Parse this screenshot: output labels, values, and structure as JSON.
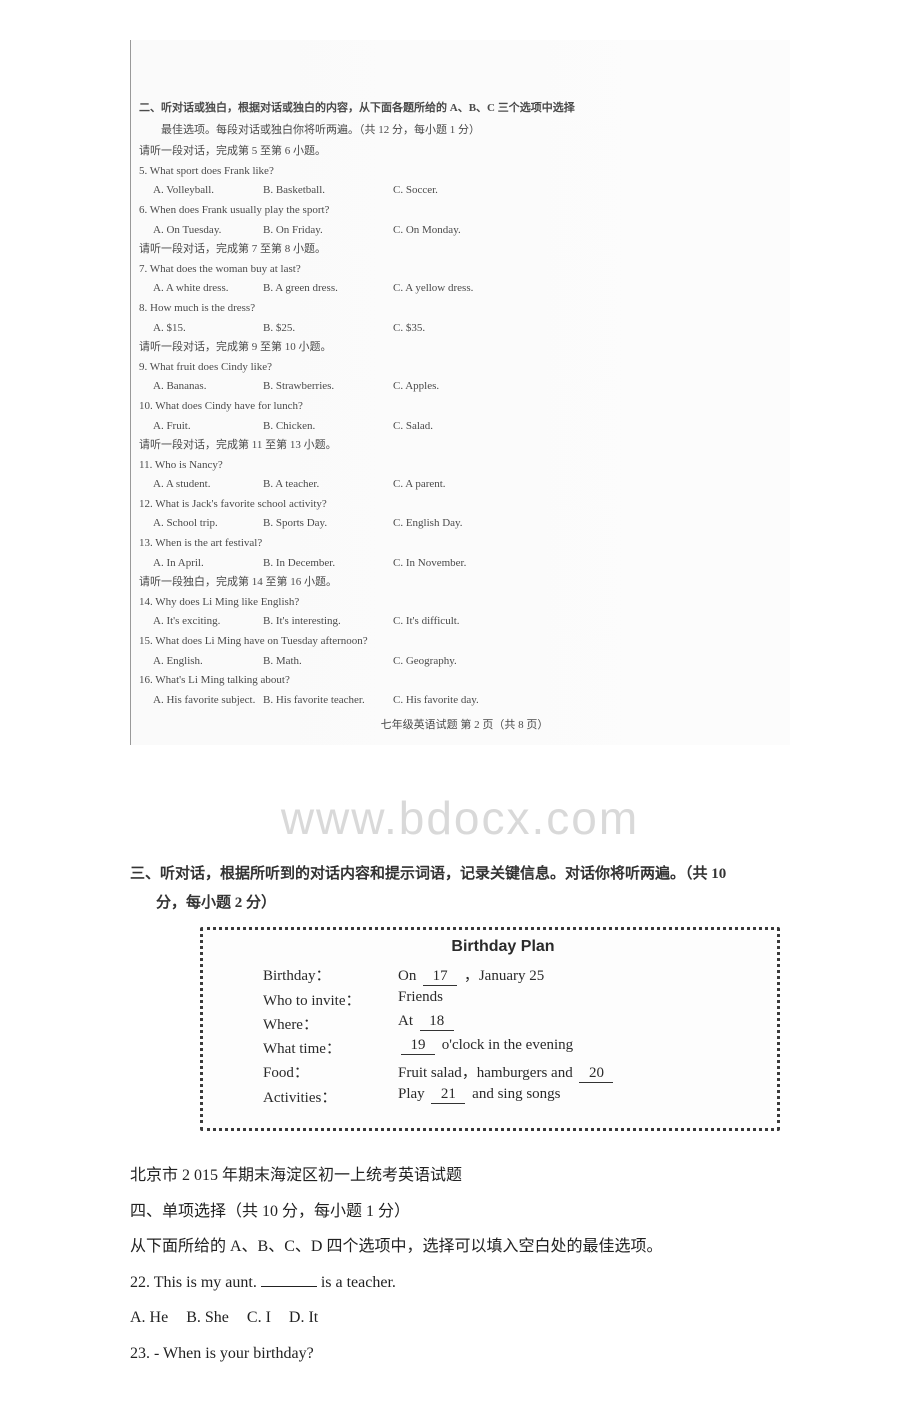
{
  "scan": {
    "section2_heading": "二、听对话或独白，根据对话或独白的内容，从下面各题所给的 A、B、C 三个选项中选择",
    "section2_sub": "最佳选项。每段对话或独白你将听两遍。（共 12 分，每小题 1 分）",
    "instr_5_6": "请听一段对话，完成第 5 至第 6 小题。",
    "q5": "5.  What sport does Frank like?",
    "q5a": "A.  Volleyball.",
    "q5b": "B.  Basketball.",
    "q5c": "C.  Soccer.",
    "q6": "6.  When does Frank usually play the sport?",
    "q6a": "A.  On Tuesday.",
    "q6b": "B.  On Friday.",
    "q6c": "C.  On Monday.",
    "instr_7_8": "请听一段对话，完成第 7 至第 8 小题。",
    "q7": "7.  What does the woman buy at last?",
    "q7a": "A.  A white dress.",
    "q7b": "B.  A green dress.",
    "q7c": "C.  A yellow dress.",
    "q8": "8.  How much is the dress?",
    "q8a": "A.  $15.",
    "q8b": "B.  $25.",
    "q8c": "C.  $35.",
    "instr_9_10": "请听一段对话，完成第 9 至第 10 小题。",
    "q9": "9.  What fruit does Cindy like?",
    "q9a": "A.  Bananas.",
    "q9b": "B.  Strawberries.",
    "q9c": "C.  Apples.",
    "q10": "10.  What does Cindy have for lunch?",
    "q10a": "A.  Fruit.",
    "q10b": "B.  Chicken.",
    "q10c": "C.  Salad.",
    "instr_11_13": "请听一段对话，完成第 11 至第 13 小题。",
    "q11": "11.  Who is Nancy?",
    "q11a": "A.  A student.",
    "q11b": "B.  A teacher.",
    "q11c": "C.  A parent.",
    "q12": "12.  What is Jack's favorite school activity?",
    "q12a": "A.  School trip.",
    "q12b": "B.  Sports Day.",
    "q12c": "C.  English Day.",
    "q13": "13.  When is the art festival?",
    "q13a": "A.  In April.",
    "q13b": "B.  In December.",
    "q13c": "C.  In November.",
    "instr_14_16": "请听一段独白，完成第 14 至第 16 小题。",
    "q14": "14.  Why does Li Ming like English?",
    "q14a": "A.  It's exciting.",
    "q14b": "B.  It's interesting.",
    "q14c": "C.  It's difficult.",
    "q15": "15.  What does Li Ming have on Tuesday afternoon?",
    "q15a": "A.  English.",
    "q15b": "B.  Math.",
    "q15c": "C.  Geography.",
    "q16": "16.  What's Li Ming talking about?",
    "q16a": "A.  His favorite subject.",
    "q16b": "B.  His favorite teacher.",
    "q16c": "C.  His favorite day.",
    "footer": "七年级英语试题  第 2 页（共 8 页）"
  },
  "watermark": "www.bdocx.com",
  "section3": {
    "heading": "三、听对话，根据所听到的对话内容和提示词语，记录关键信息。对话你将听两遍。（共 10",
    "sub": "分，每小题 2 分）"
  },
  "plan": {
    "title": "Birthday Plan",
    "rows": {
      "birthday": {
        "label": "Birthday：",
        "pre": "On ",
        "blank": "17",
        "post": " ，January 25"
      },
      "invite": {
        "label": "Who to invite：",
        "value": "Friends"
      },
      "where": {
        "label": "Where：",
        "pre": "At ",
        "blank": "18",
        "post": ""
      },
      "time": {
        "label": "What time：",
        "pre": "",
        "blank": "19",
        "post": " o'clock in the evening"
      },
      "food": {
        "label": "Food：",
        "pre": "Fruit salad，hamburgers and ",
        "blank": "20",
        "post": ""
      },
      "activities": {
        "label": "Activities：",
        "pre": "Play ",
        "blank": "21",
        "post": " and sing songs"
      }
    }
  },
  "bottom": {
    "title_line": "北京市 2 015 年期末海淀区初一上统考英语试题",
    "sec4_heading": "四、单项选择（共 10 分，每小题 1 分）",
    "sec4_instr": "从下面所给的 A、B、C、D 四个选项中，选择可以填入空白处的最佳选项。",
    "q22_text_pre": "22. This is my aunt. ",
    "q22_text_post": " is a teacher.",
    "q22_choices": {
      "a": "A. He",
      "b": "B. She",
      "c": "C. I",
      "d": "D. It"
    },
    "q23": "23. - When is your birthday?"
  }
}
